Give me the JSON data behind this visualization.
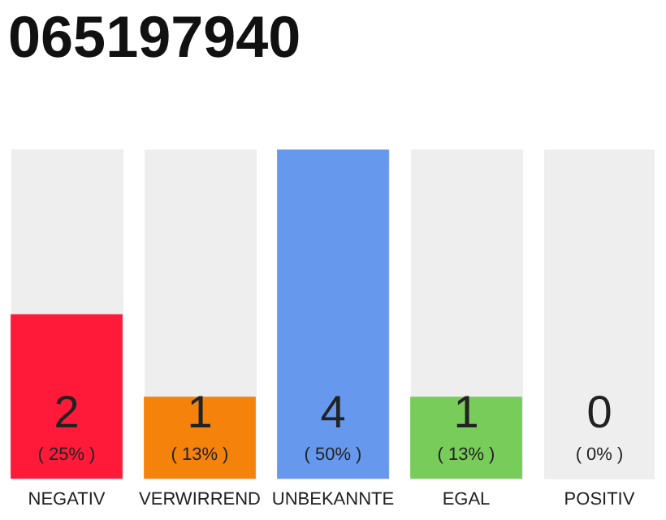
{
  "chart_data": {
    "type": "bar",
    "title": "065197940",
    "categories": [
      "NEGATIV",
      "VERWIRREND",
      "UNBEKANNTE",
      "EGAL",
      "POSITIV"
    ],
    "values": [
      2,
      1,
      4,
      1,
      0
    ],
    "colors": [
      "#ff1a3a",
      "#f5820a",
      "#6699ee",
      "#77cc5a",
      "#cccccc"
    ],
    "annotations": [
      "( 25% )",
      "( 13% )",
      "( 50% )",
      "( 13% )",
      "( 0% )"
    ],
    "data_labels": true,
    "tick_labels": "x",
    "grid": false,
    "legend": false
  }
}
